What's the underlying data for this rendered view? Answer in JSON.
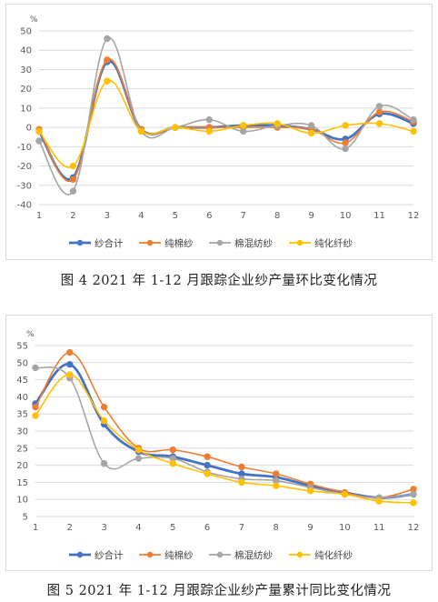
{
  "chart_data": [
    {
      "type": "line",
      "smooth": true,
      "unit_label": "%",
      "categories": [
        "1",
        "2",
        "3",
        "4",
        "5",
        "6",
        "7",
        "8",
        "9",
        "10",
        "11",
        "12"
      ],
      "ylim": [
        -40,
        50
      ],
      "yticks": [
        -40,
        -30,
        -20,
        -10,
        0,
        10,
        20,
        30,
        40,
        50
      ],
      "grid": true,
      "legend_position": "bottom",
      "series": [
        {
          "name": "纱合计",
          "color": "#4472c4",
          "values": [
            -2,
            -26,
            34,
            -1,
            0,
            0,
            1,
            1,
            -1,
            -6,
            7,
            2
          ]
        },
        {
          "name": "纯棉纱",
          "color": "#ed7d31",
          "values": [
            -1,
            -27,
            35,
            -1,
            0,
            0,
            0,
            0,
            -1,
            -8,
            8,
            3
          ]
        },
        {
          "name": "棉混纺纱",
          "color": "#a5a5a5",
          "values": [
            -7,
            -33,
            46,
            -2,
            0,
            4,
            -2,
            1,
            1,
            -11,
            11,
            4
          ]
        },
        {
          "name": "纯化纤纱",
          "color": "#ffc000",
          "values": [
            -2,
            -20,
            24,
            -2,
            0,
            -2,
            1,
            2,
            -3,
            1,
            2,
            -2
          ]
        }
      ]
    },
    {
      "type": "line",
      "smooth": true,
      "unit_label": "%",
      "categories": [
        "1",
        "2",
        "3",
        "4",
        "5",
        "6",
        "7",
        "8",
        "9",
        "10",
        "11",
        "12"
      ],
      "ylim": [
        5,
        55
      ],
      "yticks": [
        5,
        10,
        15,
        20,
        25,
        30,
        35,
        40,
        45,
        50,
        55
      ],
      "grid": true,
      "legend_position": "bottom",
      "series": [
        {
          "name": "纱合计",
          "color": "#4472c4",
          "values": [
            38,
            49.5,
            32,
            24,
            22.5,
            20,
            17.5,
            16.5,
            14,
            12,
            10.5,
            11.5
          ]
        },
        {
          "name": "纯棉纱",
          "color": "#ed7d31",
          "values": [
            37,
            53,
            37,
            25,
            24.5,
            22.5,
            19.5,
            17.5,
            14.5,
            12,
            10.5,
            13
          ]
        },
        {
          "name": "棉混纺纱",
          "color": "#a5a5a5",
          "values": [
            48.5,
            45.5,
            20.5,
            22,
            22,
            18,
            16,
            15.5,
            13.5,
            11.5,
            10.5,
            11.5
          ]
        },
        {
          "name": "纯化纤纱",
          "color": "#ffc000",
          "values": [
            34.5,
            46.5,
            33,
            24.5,
            20.5,
            17.5,
            15,
            14,
            12.5,
            11.5,
            9.5,
            9
          ]
        }
      ]
    }
  ],
  "captions": {
    "fig4": "图 4   2021 年 1-12 月跟踪企业纱产量环比变化情况",
    "fig5": "图 5   2021 年 1-12 月跟踪企业纱产量累计同比变化情况"
  }
}
